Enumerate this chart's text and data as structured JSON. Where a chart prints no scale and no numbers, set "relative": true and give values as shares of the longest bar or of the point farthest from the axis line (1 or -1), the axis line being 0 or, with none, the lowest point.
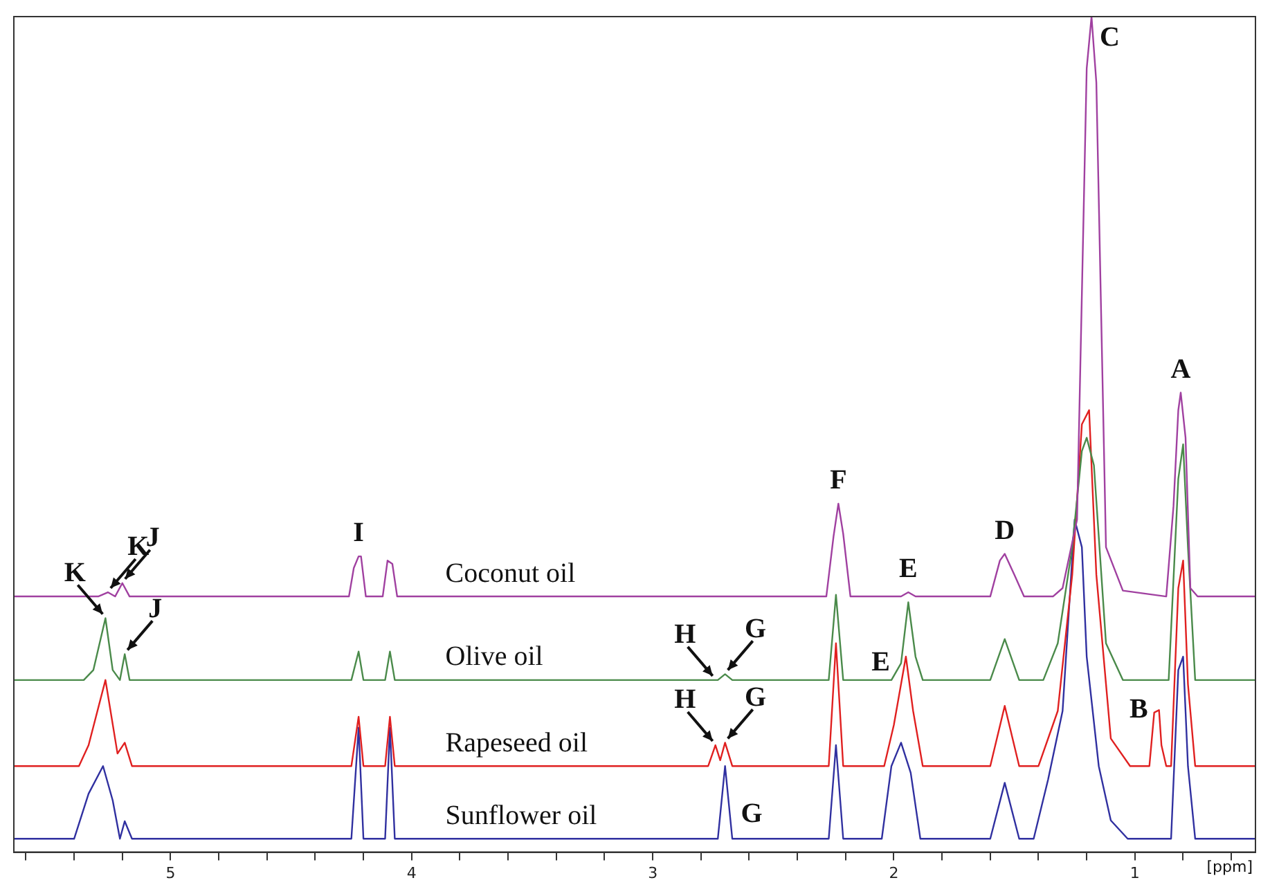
{
  "chart_data": {
    "type": "line",
    "relative": true,
    "xlabel": "[ppm]",
    "xlim": [
      5.65,
      0.5
    ],
    "xticks": [
      {
        "value": 5.6,
        "label": null
      },
      {
        "value": 5.4,
        "label": null
      },
      {
        "value": 5.2,
        "label": null
      },
      5,
      {
        "value": 4.8,
        "label": null
      },
      {
        "value": 4.6,
        "label": null
      },
      {
        "value": 4.4,
        "label": null
      },
      {
        "value": 4.2,
        "label": null
      },
      4,
      {
        "value": 3.8,
        "label": null
      },
      {
        "value": 3.6,
        "label": null
      },
      {
        "value": 3.4,
        "label": null
      },
      {
        "value": 3.2,
        "label": null
      },
      3,
      {
        "value": 2.8,
        "label": null
      },
      {
        "value": 2.6,
        "label": null
      },
      {
        "value": 2.4,
        "label": null
      },
      {
        "value": 2.2,
        "label": null
      },
      2,
      {
        "value": 1.8,
        "label": null
      },
      {
        "value": 1.6,
        "label": null
      },
      {
        "value": 1.4,
        "label": null
      },
      {
        "value": 1.2,
        "label": null
      },
      1,
      {
        "value": 0.8,
        "label": null
      },
      {
        "value": 0.6,
        "label": null
      }
    ],
    "legend": false,
    "grid": false,
    "marker": "none",
    "line_style": "solid",
    "tick_labels": "x",
    "series": [
      {
        "name": "Coconut oil",
        "color": "#a040a0",
        "x": [
          5.65,
          5.3,
          5.26,
          5.23,
          5.2,
          5.17,
          4.26,
          4.24,
          4.22,
          4.21,
          4.19,
          4.12,
          4.1,
          4.08,
          4.06,
          2.28,
          2.25,
          2.23,
          2.21,
          2.18,
          1.97,
          1.94,
          1.91,
          1.6,
          1.56,
          1.54,
          1.5,
          1.46,
          1.34,
          1.3,
          1.24,
          1.2,
          1.18,
          1.16,
          1.12,
          1.05,
          0.87,
          0.84,
          0.82,
          0.81,
          0.79,
          0.77,
          0.74,
          0.5
        ],
        "values": [
          0.306,
          0.306,
          0.311,
          0.306,
          0.322,
          0.306,
          0.306,
          0.34,
          0.354,
          0.354,
          0.306,
          0.306,
          0.349,
          0.345,
          0.306,
          0.306,
          0.378,
          0.417,
          0.381,
          0.306,
          0.306,
          0.311,
          0.306,
          0.306,
          0.349,
          0.357,
          0.332,
          0.306,
          0.306,
          0.316,
          0.398,
          0.938,
          1.0,
          0.921,
          0.365,
          0.313,
          0.306,
          0.414,
          0.529,
          0.55,
          0.496,
          0.316,
          0.306,
          0.306
        ]
      },
      {
        "name": "Olive oil",
        "color": "#4a8a4a",
        "x": [
          5.65,
          5.36,
          5.32,
          5.27,
          5.24,
          5.21,
          5.19,
          5.17,
          4.25,
          4.22,
          4.2,
          4.11,
          4.09,
          4.07,
          2.73,
          2.7,
          2.67,
          2.27,
          2.24,
          2.21,
          2.01,
          1.97,
          1.94,
          1.91,
          1.88,
          1.6,
          1.54,
          1.48,
          1.38,
          1.32,
          1.26,
          1.22,
          1.2,
          1.17,
          1.12,
          1.05,
          0.86,
          0.82,
          0.8,
          0.78,
          0.75,
          0.5
        ],
        "values": [
          0.206,
          0.206,
          0.218,
          0.28,
          0.218,
          0.206,
          0.237,
          0.206,
          0.206,
          0.24,
          0.206,
          0.206,
          0.24,
          0.206,
          0.206,
          0.213,
          0.206,
          0.206,
          0.308,
          0.206,
          0.206,
          0.226,
          0.299,
          0.234,
          0.206,
          0.206,
          0.255,
          0.206,
          0.206,
          0.25,
          0.365,
          0.48,
          0.496,
          0.463,
          0.25,
          0.206,
          0.206,
          0.447,
          0.488,
          0.365,
          0.206,
          0.206
        ]
      },
      {
        "name": "Rapeseed oil",
        "color": "#e02020",
        "x": [
          5.65,
          5.38,
          5.34,
          5.27,
          5.22,
          5.19,
          5.16,
          4.25,
          4.22,
          4.2,
          4.11,
          4.09,
          4.07,
          2.77,
          2.74,
          2.72,
          2.7,
          2.67,
          2.27,
          2.24,
          2.21,
          2.04,
          2.0,
          1.95,
          1.92,
          1.88,
          1.6,
          1.54,
          1.48,
          1.4,
          1.32,
          1.26,
          1.22,
          1.19,
          1.16,
          1.1,
          1.02,
          0.94,
          0.92,
          0.9,
          0.89,
          0.87,
          0.85,
          0.82,
          0.8,
          0.78,
          0.75,
          0.5
        ],
        "values": [
          0.103,
          0.103,
          0.128,
          0.206,
          0.118,
          0.131,
          0.103,
          0.103,
          0.162,
          0.103,
          0.103,
          0.162,
          0.103,
          0.103,
          0.128,
          0.11,
          0.131,
          0.103,
          0.103,
          0.25,
          0.103,
          0.103,
          0.152,
          0.234,
          0.169,
          0.103,
          0.103,
          0.175,
          0.103,
          0.103,
          0.169,
          0.332,
          0.512,
          0.529,
          0.332,
          0.136,
          0.103,
          0.103,
          0.167,
          0.17,
          0.128,
          0.103,
          0.103,
          0.316,
          0.349,
          0.201,
          0.103,
          0.103
        ]
      },
      {
        "name": "Sunflower oil",
        "color": "#3030a0",
        "x": [
          5.65,
          5.4,
          5.34,
          5.28,
          5.24,
          5.21,
          5.19,
          5.16,
          4.25,
          4.22,
          4.2,
          4.11,
          4.09,
          4.07,
          2.73,
          2.7,
          2.67,
          2.27,
          2.24,
          2.21,
          2.05,
          2.01,
          1.97,
          1.93,
          1.89,
          1.6,
          1.54,
          1.48,
          1.42,
          1.36,
          1.3,
          1.25,
          1.22,
          1.2,
          1.15,
          1.1,
          1.03,
          0.85,
          0.82,
          0.8,
          0.78,
          0.75,
          0.5
        ],
        "values": [
          0.016,
          0.016,
          0.07,
          0.103,
          0.062,
          0.016,
          0.037,
          0.016,
          0.016,
          0.149,
          0.016,
          0.016,
          0.149,
          0.016,
          0.016,
          0.103,
          0.016,
          0.016,
          0.128,
          0.016,
          0.016,
          0.103,
          0.131,
          0.095,
          0.016,
          0.016,
          0.083,
          0.016,
          0.016,
          0.087,
          0.169,
          0.398,
          0.365,
          0.234,
          0.103,
          0.038,
          0.016,
          0.016,
          0.218,
          0.234,
          0.103,
          0.016,
          0.016
        ]
      }
    ],
    "annotations": [
      {
        "text": "K",
        "x": 5.26,
        "y": 0.311
      },
      {
        "text": "J",
        "x": 5.2,
        "y": 0.322
      },
      {
        "text": "I",
        "x": 4.22,
        "y": 0.354
      },
      {
        "text": "F",
        "x": 2.23,
        "y": 0.417
      },
      {
        "text": "E",
        "x": 1.94,
        "y": 0.311
      },
      {
        "text": "D",
        "x": 1.54,
        "y": 0.357
      },
      {
        "text": "C",
        "x": 1.18,
        "y": 1.0
      },
      {
        "text": "A",
        "x": 0.81,
        "y": 0.55
      },
      {
        "text": "K",
        "x": 5.27,
        "y": 0.28
      },
      {
        "text": "J",
        "x": 5.19,
        "y": 0.237
      },
      {
        "text": "H",
        "x": 2.74,
        "y": 0.206
      },
      {
        "text": "G",
        "x": 2.7,
        "y": 0.213
      },
      {
        "text": "E",
        "x": 1.97,
        "y": 0.226
      },
      {
        "text": "H",
        "x": 2.74,
        "y": 0.128
      },
      {
        "text": "G",
        "x": 2.7,
        "y": 0.131
      },
      {
        "text": "B",
        "x": 0.9,
        "y": 0.17
      },
      {
        "text": "G",
        "x": 2.68,
        "y": 0.045
      }
    ]
  }
}
